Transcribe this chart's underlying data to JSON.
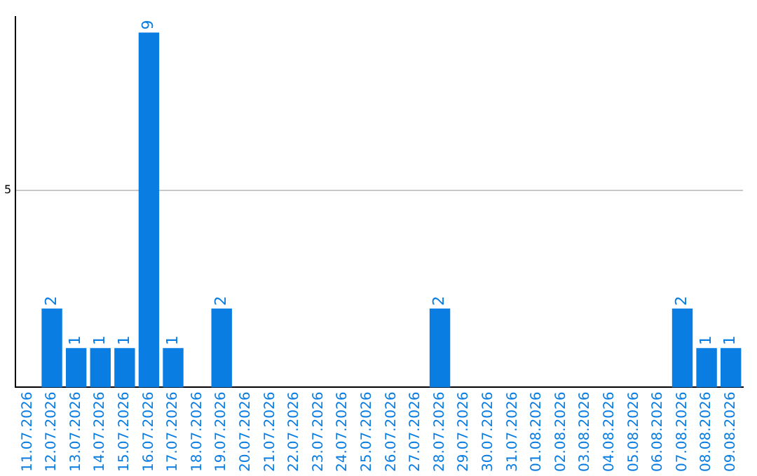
{
  "chart_data": {
    "type": "bar",
    "categories": [
      "11.07.2026",
      "12.07.2026",
      "13.07.2026",
      "14.07.2026",
      "15.07.2026",
      "16.07.2026",
      "17.07.2026",
      "18.07.2026",
      "19.07.2026",
      "20.07.2026",
      "21.07.2026",
      "22.07.2026",
      "23.07.2026",
      "24.07.2026",
      "25.07.2026",
      "26.07.2026",
      "27.07.2026",
      "28.07.2026",
      "29.07.2026",
      "30.07.2026",
      "31.07.2026",
      "01.08.2026",
      "02.08.2026",
      "03.08.2026",
      "04.08.2026",
      "05.08.2026",
      "06.08.2026",
      "07.08.2026",
      "08.08.2026",
      "09.08.2026"
    ],
    "values": [
      0,
      2,
      1,
      1,
      1,
      9,
      1,
      0,
      2,
      0,
      0,
      0,
      0,
      0,
      0,
      0,
      0,
      2,
      0,
      0,
      0,
      0,
      0,
      0,
      0,
      0,
      0,
      2,
      1,
      1
    ],
    "value_labels": [
      null,
      "2",
      "1",
      "1",
      "1",
      "9",
      "1",
      null,
      "2",
      null,
      null,
      null,
      null,
      null,
      null,
      null,
      null,
      "2",
      null,
      null,
      null,
      null,
      null,
      null,
      null,
      null,
      null,
      "2",
      "1",
      "1"
    ],
    "color": "#0a7de3",
    "ylim": [
      0,
      9.4
    ],
    "yticks": [
      5
    ],
    "grid": "y",
    "legend": false
  }
}
